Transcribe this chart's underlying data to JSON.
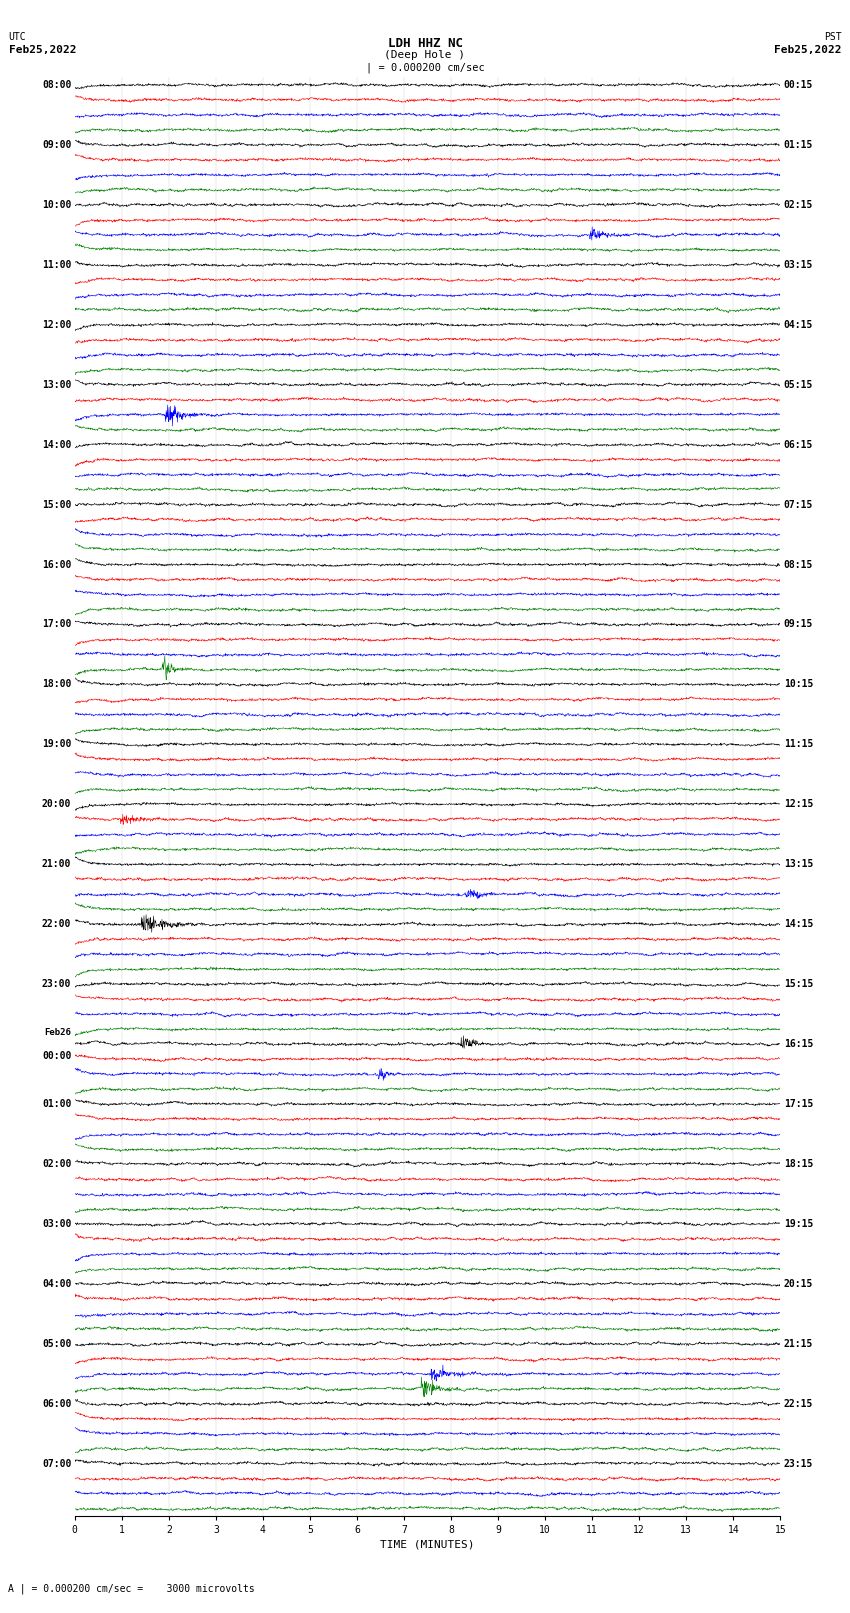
{
  "title_line1": "LDH HHZ NC",
  "title_line2": "(Deep Hole )",
  "title_line3": "| = 0.000200 cm/sec",
  "utc_label1": "UTC",
  "utc_label2": "Feb25,2022",
  "pst_label1": "PST",
  "pst_label2": "Feb25,2022",
  "xlabel": "TIME (MINUTES)",
  "footer": "A | = 0.000200 cm/sec =    3000 microvolts",
  "bg_color": "#ffffff",
  "trace_colors": [
    "black",
    "red",
    "blue",
    "green"
  ],
  "left_times": [
    "08:00",
    "09:00",
    "10:00",
    "11:00",
    "12:00",
    "13:00",
    "14:00",
    "15:00",
    "16:00",
    "17:00",
    "18:00",
    "19:00",
    "20:00",
    "21:00",
    "22:00",
    "23:00",
    "Feb26\n00:00",
    "01:00",
    "02:00",
    "03:00",
    "04:00",
    "05:00",
    "06:00",
    "07:00"
  ],
  "right_times": [
    "00:15",
    "01:15",
    "02:15",
    "03:15",
    "04:15",
    "05:15",
    "06:15",
    "07:15",
    "08:15",
    "09:15",
    "10:15",
    "11:15",
    "12:15",
    "13:15",
    "14:15",
    "15:15",
    "16:15",
    "17:15",
    "18:15",
    "19:15",
    "20:15",
    "21:15",
    "22:15",
    "23:15"
  ],
  "xmin": 0,
  "xmax": 15,
  "xticks": [
    0,
    1,
    2,
    3,
    4,
    5,
    6,
    7,
    8,
    9,
    10,
    11,
    12,
    13,
    14,
    15
  ],
  "n_hours": 24,
  "n_traces_per_hour": 4,
  "trace_amplitude": 0.12,
  "trace_noise_base": 0.03,
  "seed": 42
}
